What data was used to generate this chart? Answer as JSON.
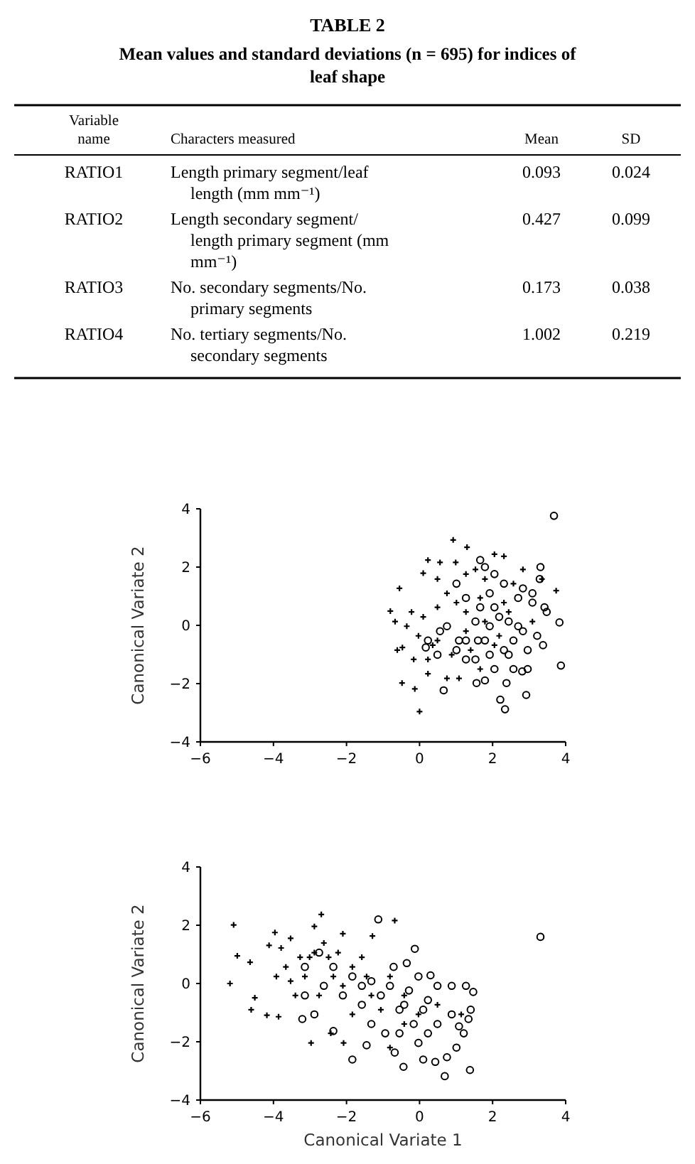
{
  "chart_data": [
    {
      "type": "other",
      "title": "TABLE 2",
      "subtitle": "Mean values and standard deviations (n = 695) for indices of leaf shape",
      "annotations": [
        "Variable name",
        "Characters measured",
        "Mean",
        "SD",
        "RATIO1",
        "Length primary segment/leaf length (mm mm⁻¹)",
        "0.093",
        "0.024",
        "RATIO2",
        "Length secondary segment/ length primary segment (mm mm⁻¹)",
        "0.427",
        "0.099",
        "RATIO3",
        "No. secondary segments/No. primary segments",
        "0.173",
        "0.038",
        "RATIO4",
        "No. tertiary segments/No. secondary segments",
        "1.002",
        "0.219"
      ]
    },
    {
      "type": "scatter",
      "ylabel": "Canonical Variate 2",
      "xlim": [
        -6,
        4
      ],
      "ylim": [
        -4,
        4
      ],
      "xticks": [
        -6,
        -4,
        -2,
        0,
        2,
        4
      ],
      "yticks": [
        -4,
        -2,
        0,
        2,
        4
      ],
      "series": [
        {
          "color": "#000000",
          "marker": "cross",
          "x": [
            0.92,
            1.3,
            2.05,
            2.31,
            0.23,
            0.99,
            -0.8,
            -0.67,
            -0.55,
            -0.47,
            -0.48,
            -0.13,
            0,
            0.75,
            1.08,
            0.23,
            3.74,
            0.1,
            0.49,
            -0.22,
            -0.03,
            0.49,
            -0.16,
            0.23,
            1.27,
            1.53,
            1.79,
            0.75,
            1.01,
            0.49,
            1.27,
            1.66,
            2.57,
            2.83,
            3.35,
            3.09,
            2.05,
            1.4,
            1.66,
            0.88,
            0.36,
            0.1,
            -0.35,
            -0.61,
            0.56,
            2.44,
            1.79,
            2.18,
            1.27,
            2.31
          ],
          "values": [
            2.93,
            2.68,
            2.44,
            2.37,
            2.24,
            2.16,
            0.49,
            0.13,
            1.27,
            -0.76,
            -1.98,
            -2.18,
            -2.96,
            -1.82,
            -1.82,
            -1.66,
            1.19,
            1.79,
            1.59,
            0.46,
            -0.36,
            -0.52,
            -1.17,
            -1.17,
            1.76,
            1.92,
            1.59,
            1.1,
            0.78,
            0.62,
            0.46,
            0.94,
            1.43,
            1.92,
            1.59,
            0.13,
            -0.68,
            -0.85,
            -1.5,
            -1.01,
            -0.68,
            0.29,
            -0.03,
            -0.85,
            2.16,
            0.46,
            0.13,
            -0.36,
            -0.2,
            0.78
          ]
        },
        {
          "color": "#000000",
          "marker": "circle",
          "x": [
            3.68,
            3.87,
            3.83,
            3.31,
            2.92,
            2.34,
            2.21,
            2.38,
            1.79,
            1.56,
            0.66,
            2.81,
            2.96,
            3.38,
            3.42,
            3.48,
            3.29,
            3.09,
            2.7,
            2.83,
            2.57,
            2.31,
            1.92,
            1.53,
            1.27,
            1.08,
            0.75,
            0.56,
            0.23,
            1.66,
            1.79,
            2.05,
            2.31,
            1.92,
            1.66,
            2.05,
            2.18,
            2.44,
            2.7,
            1.92,
            1.53,
            1.27,
            1.01,
            1.27,
            1.79,
            2.44,
            2.57,
            2.05,
            2.96,
            3.22,
            3.09,
            2.83,
            1.01,
            0.49,
            0.17,
            1.6
          ],
          "values": [
            3.76,
            -1.38,
            0.1,
            2.0,
            -2.39,
            -2.88,
            -2.55,
            -1.98,
            -1.89,
            -1.98,
            -2.23,
            -1.58,
            -1.5,
            -0.68,
            0.62,
            0.46,
            1.59,
            1.1,
            0.94,
            -0.2,
            -0.52,
            -0.85,
            -1.01,
            -1.17,
            -1.17,
            -0.52,
            -0.03,
            -0.2,
            -0.52,
            2.24,
            2.0,
            1.76,
            1.43,
            1.1,
            0.62,
            0.62,
            0.29,
            0.13,
            -0.03,
            -0.03,
            0.13,
            0.94,
            1.43,
            -0.52,
            -0.52,
            -1.01,
            -1.5,
            -1.5,
            -0.85,
            -0.36,
            0.78,
            1.27,
            -0.85,
            -1.01,
            -0.76,
            -0.52
          ]
        }
      ]
    },
    {
      "type": "scatter",
      "xlabel": "Canonical Variate 1",
      "ylabel": "Canonical Variate 2",
      "xlim": [
        -6,
        4
      ],
      "ylim": [
        -4,
        4
      ],
      "xticks": [
        -6,
        -4,
        -2,
        0,
        2,
        4
      ],
      "yticks": [
        -4,
        -2,
        0,
        2,
        4
      ],
      "series": [
        {
          "color": "#000000",
          "marker": "cross",
          "x": [
            -5.09,
            -5.19,
            -4.99,
            -4.64,
            -4.51,
            -4.61,
            -4.18,
            -3.86,
            -3.96,
            -4.12,
            -3.53,
            -2.69,
            -2.88,
            -2.1,
            -1.29,
            -0.68,
            -2.97,
            -2.08,
            -2.43,
            -3.66,
            -3.92,
            -3.4,
            -3.14,
            -2.88,
            -2.62,
            -2.23,
            -1.84,
            -1.45,
            -2.36,
            -2.1,
            -2.75,
            -3.27,
            -3.53,
            -1.58,
            -0.81,
            -0.42,
            -1.32,
            -0.81,
            -0.03,
            0.49,
            1.14,
            -1.84,
            -1.06,
            -0.42,
            -2.49,
            -3.01,
            -3.79
          ],
          "values": [
            2.01,
            0,
            0.95,
            0.73,
            -0.49,
            -0.9,
            -1.09,
            -1.14,
            1.75,
            1.31,
            1.55,
            2.37,
            1.96,
            1.71,
            1.63,
            2.16,
            -2.04,
            -2.04,
            -1.71,
            0.57,
            0.24,
            -0.41,
            0.24,
            1.06,
            1.39,
            1.06,
            0.57,
            0.24,
            0.24,
            -0.08,
            -0.41,
            0.9,
            0.08,
            0.9,
            0.24,
            -0.41,
            -0.41,
            -2.2,
            -1.06,
            -0.73,
            -1.06,
            -1.06,
            -0.9,
            -1.39,
            0.9,
            0.9,
            1.22
          ]
        },
        {
          "color": "#000000",
          "marker": "circle",
          "x": [
            3.31,
            -1.13,
            -0.13,
            0.69,
            1.38,
            -0.44,
            -1.84,
            -2.36,
            -2.88,
            -3.14,
            -2.62,
            -2.1,
            -1.58,
            -1.32,
            -1.45,
            -0.94,
            -0.55,
            -0.29,
            -0.03,
            0.3,
            0.49,
            0.88,
            1.27,
            1.47,
            1.4,
            1.34,
            1.21,
            1.01,
            0.75,
            0.43,
            0.1,
            -0.03,
            0.23,
            0.49,
            0.88,
            -0.16,
            -0.55,
            -0.68,
            -1.06,
            -0.81,
            -1.32,
            -1.84,
            -2.36,
            -2.75,
            -0.71,
            -0.35,
            1.08,
            0.1,
            0.23,
            -0.42,
            -1.58,
            -3.14,
            -3.21
          ],
          "values": [
            1.6,
            2.2,
            1.19,
            -3.18,
            -2.97,
            -2.86,
            -2.61,
            -1.63,
            -1.06,
            0.57,
            -0.08,
            -0.41,
            -0.73,
            -1.39,
            -2.12,
            -1.71,
            -0.9,
            -0.24,
            0.24,
            0.28,
            -0.08,
            -0.08,
            -0.08,
            -0.29,
            -0.9,
            -1.22,
            -1.71,
            -2.2,
            -2.53,
            -2.69,
            -2.61,
            -2.04,
            -1.71,
            -1.39,
            -1.06,
            -1.39,
            -1.71,
            -2.37,
            -0.41,
            -0.08,
            0.08,
            0.24,
            0.57,
            1.06,
            0.57,
            0.7,
            -1.47,
            -0.9,
            -0.57,
            -0.73,
            -0.08,
            -0.41,
            -1.22
          ]
        }
      ]
    }
  ]
}
